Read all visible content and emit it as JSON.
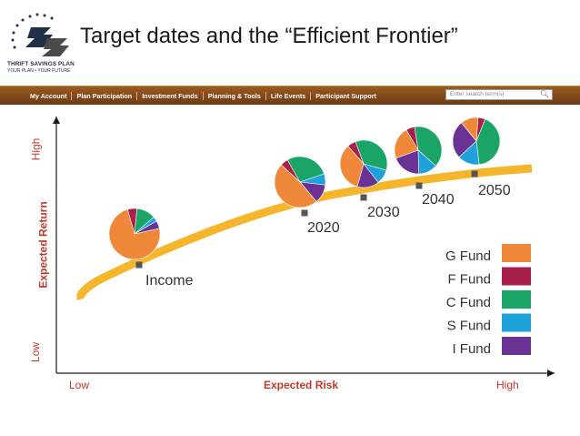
{
  "logo": {
    "name_line": "THRIFT SAVINGS PLAN",
    "tagline": "YOUR PLAN • YOUR FUTURE"
  },
  "slide_title": "Target dates and the “Efficient Frontier”",
  "nav": {
    "items": [
      "My Account",
      "Plan Participation",
      "Investment Funds",
      "Planning & Tools",
      "Life Events",
      "Participant Support"
    ],
    "search_placeholder": "Enter search term(s)"
  },
  "colors": {
    "curve": "#f6b62b",
    "G Fund": "#f0883a",
    "F Fund": "#a8204a",
    "C Fund": "#1aa468",
    "S Fund": "#1fa2dc",
    "I Fund": "#6a3294",
    "axis": "#1a1a1a",
    "axis_label": "#c0392b",
    "y_axis_label": "#c0392b",
    "tick_label": "#c0392b"
  },
  "chart_data": {
    "type": "line",
    "xlabel": "Expected Risk",
    "ylabel": "Expected Return",
    "x_tick_labels": [
      "Low",
      "High"
    ],
    "y_tick_labels": [
      "Low",
      "High"
    ],
    "curve_label": "",
    "points": [
      {
        "label": "Income",
        "x": 0.17,
        "y": 0.42
      },
      {
        "label": "2020",
        "x": 0.5,
        "y": 0.62
      },
      {
        "label": "2030",
        "x": 0.62,
        "y": 0.69
      },
      {
        "label": "2040",
        "x": 0.73,
        "y": 0.73
      },
      {
        "label": "2050",
        "x": 0.84,
        "y": 0.77
      }
    ],
    "legend": {
      "placement": "bottom-right",
      "entries": [
        "G Fund",
        "F Fund",
        "C Fund",
        "S Fund",
        "I Fund"
      ]
    },
    "allocations": [
      {
        "label": "Income",
        "G Fund": 74,
        "F Fund": 6,
        "C Fund": 12,
        "S Fund": 3,
        "I Fund": 5
      },
      {
        "label": "2020",
        "G Fund": 48,
        "F Fund": 5,
        "C Fund": 28,
        "S Fund": 7,
        "I Fund": 12
      },
      {
        "label": "2030",
        "G Fund": 34,
        "F Fund": 6,
        "C Fund": 35,
        "S Fund": 10,
        "I Fund": 15
      },
      {
        "label": "2040",
        "G Fund": 22,
        "F Fund": 6,
        "C Fund": 39,
        "S Fund": 13,
        "I Fund": 20
      },
      {
        "label": "2050",
        "G Fund": 12,
        "F Fund": 5,
        "C Fund": 42,
        "S Fund": 15,
        "I Fund": 26
      }
    ]
  }
}
